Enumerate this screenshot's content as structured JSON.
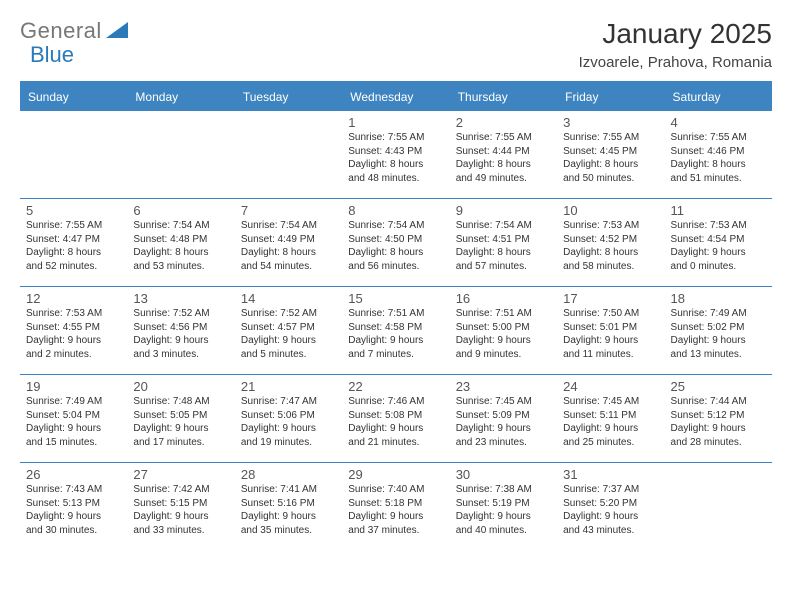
{
  "logo": {
    "text1": "General",
    "text2": "Blue",
    "shape_color": "#2a7ab9"
  },
  "title": "January 2025",
  "location": "Izvoarele, Prahova, Romania",
  "colors": {
    "header_bg": "#3e84c0",
    "header_text": "#ffffff",
    "border": "#3e84c0",
    "body_text": "#333333",
    "daynum": "#555555",
    "bg": "#ffffff"
  },
  "font": {
    "family": "Arial",
    "title_size": 28,
    "location_size": 15,
    "header_size": 12,
    "daynum_size": 13,
    "cell_size": 10
  },
  "weekdays": [
    "Sunday",
    "Monday",
    "Tuesday",
    "Wednesday",
    "Thursday",
    "Friday",
    "Saturday"
  ],
  "weeks": [
    [
      null,
      null,
      null,
      {
        "n": "1",
        "sr": "Sunrise: 7:55 AM",
        "ss": "Sunset: 4:43 PM",
        "d1": "Daylight: 8 hours",
        "d2": "and 48 minutes."
      },
      {
        "n": "2",
        "sr": "Sunrise: 7:55 AM",
        "ss": "Sunset: 4:44 PM",
        "d1": "Daylight: 8 hours",
        "d2": "and 49 minutes."
      },
      {
        "n": "3",
        "sr": "Sunrise: 7:55 AM",
        "ss": "Sunset: 4:45 PM",
        "d1": "Daylight: 8 hours",
        "d2": "and 50 minutes."
      },
      {
        "n": "4",
        "sr": "Sunrise: 7:55 AM",
        "ss": "Sunset: 4:46 PM",
        "d1": "Daylight: 8 hours",
        "d2": "and 51 minutes."
      }
    ],
    [
      {
        "n": "5",
        "sr": "Sunrise: 7:55 AM",
        "ss": "Sunset: 4:47 PM",
        "d1": "Daylight: 8 hours",
        "d2": "and 52 minutes."
      },
      {
        "n": "6",
        "sr": "Sunrise: 7:54 AM",
        "ss": "Sunset: 4:48 PM",
        "d1": "Daylight: 8 hours",
        "d2": "and 53 minutes."
      },
      {
        "n": "7",
        "sr": "Sunrise: 7:54 AM",
        "ss": "Sunset: 4:49 PM",
        "d1": "Daylight: 8 hours",
        "d2": "and 54 minutes."
      },
      {
        "n": "8",
        "sr": "Sunrise: 7:54 AM",
        "ss": "Sunset: 4:50 PM",
        "d1": "Daylight: 8 hours",
        "d2": "and 56 minutes."
      },
      {
        "n": "9",
        "sr": "Sunrise: 7:54 AM",
        "ss": "Sunset: 4:51 PM",
        "d1": "Daylight: 8 hours",
        "d2": "and 57 minutes."
      },
      {
        "n": "10",
        "sr": "Sunrise: 7:53 AM",
        "ss": "Sunset: 4:52 PM",
        "d1": "Daylight: 8 hours",
        "d2": "and 58 minutes."
      },
      {
        "n": "11",
        "sr": "Sunrise: 7:53 AM",
        "ss": "Sunset: 4:54 PM",
        "d1": "Daylight: 9 hours",
        "d2": "and 0 minutes."
      }
    ],
    [
      {
        "n": "12",
        "sr": "Sunrise: 7:53 AM",
        "ss": "Sunset: 4:55 PM",
        "d1": "Daylight: 9 hours",
        "d2": "and 2 minutes."
      },
      {
        "n": "13",
        "sr": "Sunrise: 7:52 AM",
        "ss": "Sunset: 4:56 PM",
        "d1": "Daylight: 9 hours",
        "d2": "and 3 minutes."
      },
      {
        "n": "14",
        "sr": "Sunrise: 7:52 AM",
        "ss": "Sunset: 4:57 PM",
        "d1": "Daylight: 9 hours",
        "d2": "and 5 minutes."
      },
      {
        "n": "15",
        "sr": "Sunrise: 7:51 AM",
        "ss": "Sunset: 4:58 PM",
        "d1": "Daylight: 9 hours",
        "d2": "and 7 minutes."
      },
      {
        "n": "16",
        "sr": "Sunrise: 7:51 AM",
        "ss": "Sunset: 5:00 PM",
        "d1": "Daylight: 9 hours",
        "d2": "and 9 minutes."
      },
      {
        "n": "17",
        "sr": "Sunrise: 7:50 AM",
        "ss": "Sunset: 5:01 PM",
        "d1": "Daylight: 9 hours",
        "d2": "and 11 minutes."
      },
      {
        "n": "18",
        "sr": "Sunrise: 7:49 AM",
        "ss": "Sunset: 5:02 PM",
        "d1": "Daylight: 9 hours",
        "d2": "and 13 minutes."
      }
    ],
    [
      {
        "n": "19",
        "sr": "Sunrise: 7:49 AM",
        "ss": "Sunset: 5:04 PM",
        "d1": "Daylight: 9 hours",
        "d2": "and 15 minutes."
      },
      {
        "n": "20",
        "sr": "Sunrise: 7:48 AM",
        "ss": "Sunset: 5:05 PM",
        "d1": "Daylight: 9 hours",
        "d2": "and 17 minutes."
      },
      {
        "n": "21",
        "sr": "Sunrise: 7:47 AM",
        "ss": "Sunset: 5:06 PM",
        "d1": "Daylight: 9 hours",
        "d2": "and 19 minutes."
      },
      {
        "n": "22",
        "sr": "Sunrise: 7:46 AM",
        "ss": "Sunset: 5:08 PM",
        "d1": "Daylight: 9 hours",
        "d2": "and 21 minutes."
      },
      {
        "n": "23",
        "sr": "Sunrise: 7:45 AM",
        "ss": "Sunset: 5:09 PM",
        "d1": "Daylight: 9 hours",
        "d2": "and 23 minutes."
      },
      {
        "n": "24",
        "sr": "Sunrise: 7:45 AM",
        "ss": "Sunset: 5:11 PM",
        "d1": "Daylight: 9 hours",
        "d2": "and 25 minutes."
      },
      {
        "n": "25",
        "sr": "Sunrise: 7:44 AM",
        "ss": "Sunset: 5:12 PM",
        "d1": "Daylight: 9 hours",
        "d2": "and 28 minutes."
      }
    ],
    [
      {
        "n": "26",
        "sr": "Sunrise: 7:43 AM",
        "ss": "Sunset: 5:13 PM",
        "d1": "Daylight: 9 hours",
        "d2": "and 30 minutes."
      },
      {
        "n": "27",
        "sr": "Sunrise: 7:42 AM",
        "ss": "Sunset: 5:15 PM",
        "d1": "Daylight: 9 hours",
        "d2": "and 33 minutes."
      },
      {
        "n": "28",
        "sr": "Sunrise: 7:41 AM",
        "ss": "Sunset: 5:16 PM",
        "d1": "Daylight: 9 hours",
        "d2": "and 35 minutes."
      },
      {
        "n": "29",
        "sr": "Sunrise: 7:40 AM",
        "ss": "Sunset: 5:18 PM",
        "d1": "Daylight: 9 hours",
        "d2": "and 37 minutes."
      },
      {
        "n": "30",
        "sr": "Sunrise: 7:38 AM",
        "ss": "Sunset: 5:19 PM",
        "d1": "Daylight: 9 hours",
        "d2": "and 40 minutes."
      },
      {
        "n": "31",
        "sr": "Sunrise: 7:37 AM",
        "ss": "Sunset: 5:20 PM",
        "d1": "Daylight: 9 hours",
        "d2": "and 43 minutes."
      },
      null
    ]
  ]
}
